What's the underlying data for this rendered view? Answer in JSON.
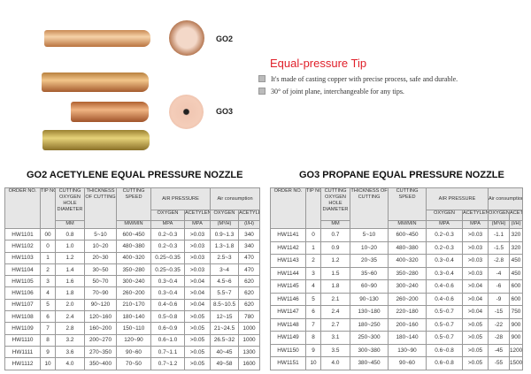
{
  "images": {
    "label_top": "GO2",
    "label_bottom": "GO3"
  },
  "feature": {
    "title": "Equal-pressure Tip",
    "bullets": [
      "It's made of casting copper with precise process, safe and durable.",
      "30°   of joint plane, interchangeable for any tips."
    ],
    "title_color": "#e0202a"
  },
  "headers": {
    "order": "ORDER NO.",
    "tip": "TIP NO.",
    "hole": "CUTTING OXYGEN HOLE DIAMETER",
    "hole_unit": "MM",
    "thick": "THICKNESS OF CUTTING",
    "speed": "CUTTING SPEED",
    "speed_unit": "MM/MIN",
    "pressure": "AIR PRESSURE",
    "consumption": "Air consumption",
    "oxygen": "OXYGEN",
    "acetylene": "ACETYLENE",
    "mpa": "MPA",
    "m3h": "(M³/H)",
    "lh": "(I/H)"
  },
  "left": {
    "title": "GO2 ACETYLENE EQUAL PRESSURE NOZZLE",
    "rows": [
      [
        "HW1101",
        "00",
        "0.8",
        "5~10",
        "600~450",
        "0.2~0.3",
        ">0.03",
        "0.9~1.3",
        "340"
      ],
      [
        "HW1102",
        "0",
        "1.0",
        "10~20",
        "480~380",
        "0.2~0.3",
        ">0.03",
        "1.3~1.8",
        "340"
      ],
      [
        "HW1103",
        "1",
        "1.2",
        "20~30",
        "400~320",
        "0.25~0.35",
        ">0.03",
        "2.5~3",
        "470"
      ],
      [
        "HW1104",
        "2",
        "1.4",
        "30~50",
        "350~280",
        "0.25~0.35",
        ">0.03",
        "3~4",
        "470"
      ],
      [
        "HW1105",
        "3",
        "1.6",
        "50~70",
        "300~240",
        "0.3~0.4",
        ">0.04",
        "4.5~6",
        "620"
      ],
      [
        "HW1106",
        "4",
        "1.8",
        "70~90",
        "260~200",
        "0.3~0.4",
        ">0.04",
        "5.5~7",
        "620"
      ],
      [
        "HW1107",
        "5",
        "2.0",
        "90~120",
        "210~170",
        "0.4~0.6",
        ">0.04",
        "8.5~10.5",
        "620"
      ],
      [
        "HW1108",
        "6",
        "2.4",
        "120~160",
        "180~140",
        "0.5~0.8",
        ">0.05",
        "12~15",
        "780"
      ],
      [
        "HW1109",
        "7",
        "2.8",
        "160~200",
        "150~110",
        "0.6~0.9",
        ">0.05",
        "21~24.5",
        "1000"
      ],
      [
        "HW1110",
        "8",
        "3.2",
        "200~270",
        "120~90",
        "0.6~1.0",
        ">0.05",
        "26.5~32",
        "1000"
      ],
      [
        "HW1111",
        "9",
        "3.6",
        "270~350",
        "90~60",
        "0.7~1.1",
        ">0.05",
        "40~45",
        "1300"
      ],
      [
        "HW1112",
        "10",
        "4.0",
        "350~400",
        "70~50",
        "0.7~1.2",
        ">0.05",
        "49~58",
        "1600"
      ]
    ]
  },
  "right": {
    "title": "GO3 PROPANE EQUAL PRESSURE NOZZLE",
    "rows": [
      [
        "HW1141",
        "0",
        "0.7",
        "5~10",
        "600~450",
        "0.2~0.3",
        ">0.03",
        "-1.1",
        "320"
      ],
      [
        "HW1142",
        "1",
        "0.9",
        "10~20",
        "480~380",
        "0.2~0.3",
        ">0.03",
        "-1.5",
        "320"
      ],
      [
        "HW1143",
        "2",
        "1.2",
        "20~35",
        "400~320",
        "0.3~0.4",
        ">0.03",
        "-2.8",
        "450"
      ],
      [
        "HW1144",
        "3",
        "1.5",
        "35~60",
        "350~280",
        "0.3~0.4",
        ">0.03",
        "-4",
        "450"
      ],
      [
        "HW1145",
        "4",
        "1.8",
        "60~90",
        "300~240",
        "0.4~0.6",
        ">0.04",
        "-6",
        "600"
      ],
      [
        "HW1146",
        "5",
        "2.1",
        "90~130",
        "260~200",
        "0.4~0.6",
        ">0.04",
        "-9",
        "600"
      ],
      [
        "HW1147",
        "6",
        "2.4",
        "130~180",
        "220~180",
        "0.5~0.7",
        ">0.04",
        "-15",
        "750"
      ],
      [
        "HW1148",
        "7",
        "2.7",
        "180~250",
        "200~160",
        "0.5~0.7",
        ">0.05",
        "-22",
        "900"
      ],
      [
        "HW1149",
        "8",
        "3.1",
        "250~300",
        "180~140",
        "0.5~0.7",
        ">0.05",
        "-28",
        "900"
      ],
      [
        "HW1150",
        "9",
        "3.5",
        "300~380",
        "130~90",
        "0.6~0.8",
        ">0.05",
        "-45",
        "1200"
      ],
      [
        "HW1151",
        "10",
        "4.0",
        "380~450",
        "90~60",
        "0.6~0.8",
        ">0.05",
        "-55",
        "1500"
      ]
    ]
  }
}
